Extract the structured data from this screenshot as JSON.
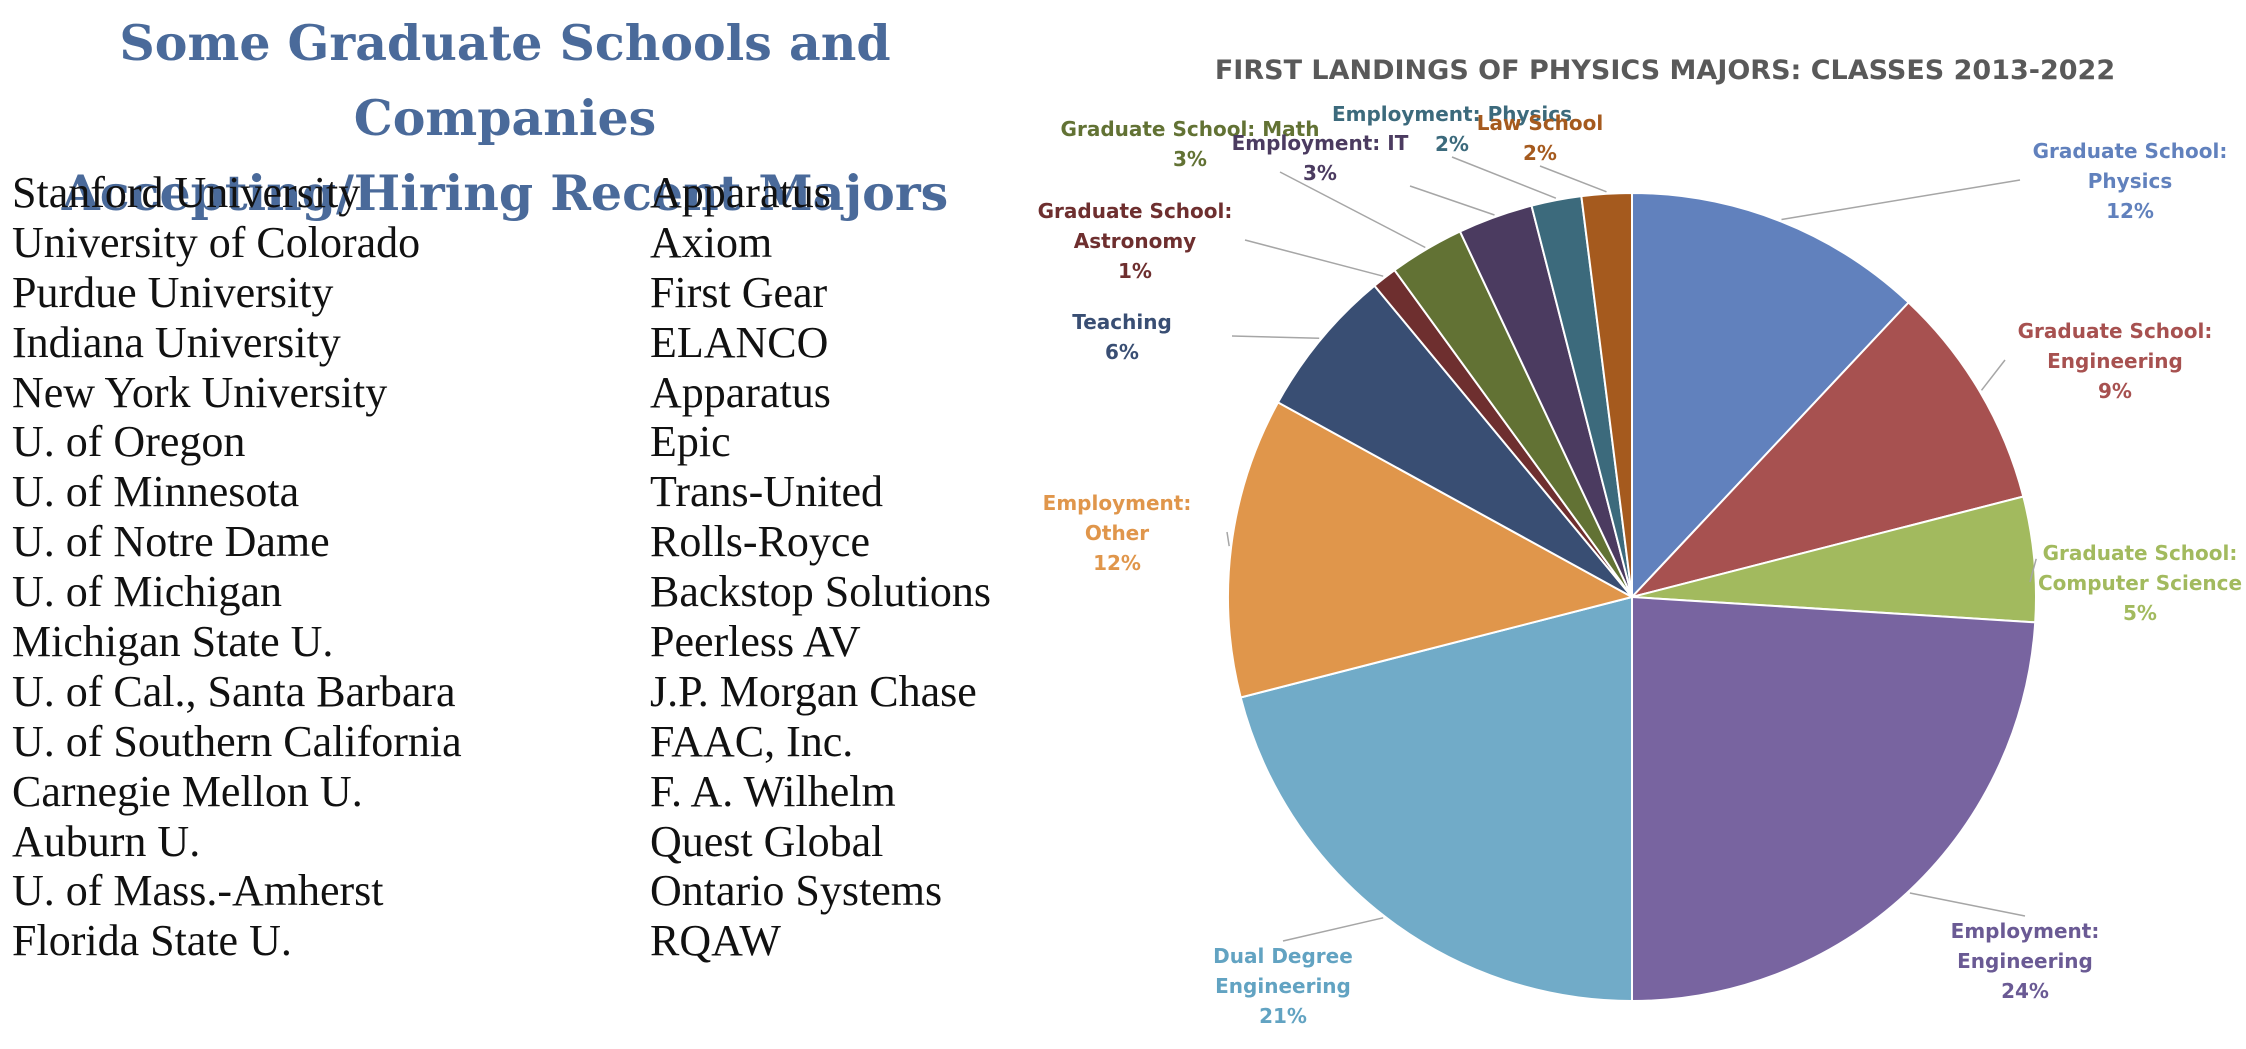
{
  "left_panel": {
    "title_lines": [
      "Some Graduate Schools and Companies",
      "Accepting/Hiring Recent Majors"
    ],
    "graduate_schools": [
      "Stanford University",
      "University of Colorado",
      "Purdue University",
      "Indiana University",
      "New York University",
      "U. of Oregon",
      "U. of Minnesota",
      "U. of Notre Dame",
      "U. of Michigan",
      "Michigan State U.",
      "U. of Cal., Santa Barbara",
      "U. of Southern California",
      "Carnegie Mellon U.",
      "Auburn U.",
      "U. of Mass.-Amherst",
      "Florida State U."
    ],
    "companies": [
      "Apparatus",
      "Axiom",
      "First Gear",
      "ELANCO",
      "Apparatus",
      "Epic",
      "Trans-United",
      "Rolls-Royce",
      "Backstop Solutions",
      "Peerless AV",
      "J.P. Morgan Chase",
      "FAAC, Inc.",
      "F. A. Wilhelm",
      "Quest Global",
      "Ontario Systems",
      "RQAW"
    ]
  },
  "chart_data": {
    "type": "pie",
    "title": "FIRST LANDINGS OF PHYSICS MAJORS: CLASSES 2013-2022",
    "legend": "none",
    "start": "12 o'clock, clockwise",
    "slices": [
      {
        "label_lines": [
          "Graduate School:",
          "Physics"
        ],
        "value": 12,
        "pct_label": "12%",
        "color": "#6181bd",
        "label_color": "#6181bd"
      },
      {
        "label_lines": [
          "Graduate School:",
          "Engineering"
        ],
        "value": 9,
        "pct_label": "9%",
        "color": "#a75150",
        "label_color": "#a75150"
      },
      {
        "label_lines": [
          "Graduate School:",
          "Computer Science"
        ],
        "value": 5,
        "pct_label": "5%",
        "color": "#a2ba5e",
        "label_color": "#a2ba5e"
      },
      {
        "label_lines": [
          "Employment:",
          "Engineering"
        ],
        "value": 24,
        "pct_label": "24%",
        "color": "#7864a0",
        "label_color": "#6a5a94"
      },
      {
        "label_lines": [
          "Dual Degree",
          "Engineering"
        ],
        "value": 21,
        "pct_label": "21%",
        "color": "#71abc8",
        "label_color": "#62a3c2"
      },
      {
        "label_lines": [
          "Employment:",
          "Other"
        ],
        "value": 12,
        "pct_label": "12%",
        "color": "#e0964b",
        "label_color": "#e0964b"
      },
      {
        "label_lines": [
          "Teaching"
        ],
        "value": 6,
        "pct_label": "6%",
        "color": "#394e73",
        "label_color": "#394e73"
      },
      {
        "label_lines": [
          "Graduate School:",
          "Astronomy"
        ],
        "value": 1,
        "pct_label": "1%",
        "color": "#6e2f2f",
        "label_color": "#6e2f2f"
      },
      {
        "label_lines": [
          "Graduate School: Math"
        ],
        "value": 3,
        "pct_label": "3%",
        "color": "#627234",
        "label_color": "#627234"
      },
      {
        "label_lines": [
          "Employment: IT"
        ],
        "value": 3,
        "pct_label": "3%",
        "color": "#4b3b60",
        "label_color": "#4b3b60"
      },
      {
        "label_lines": [
          "Employment: Physics"
        ],
        "value": 2,
        "pct_label": "2%",
        "color": "#3c6a7c",
        "label_color": "#3c6a7c"
      },
      {
        "label_lines": [
          "Law School"
        ],
        "value": 2,
        "pct_label": "2%",
        "color": "#a55a1e",
        "label_color": "#a55a1e"
      }
    ]
  }
}
